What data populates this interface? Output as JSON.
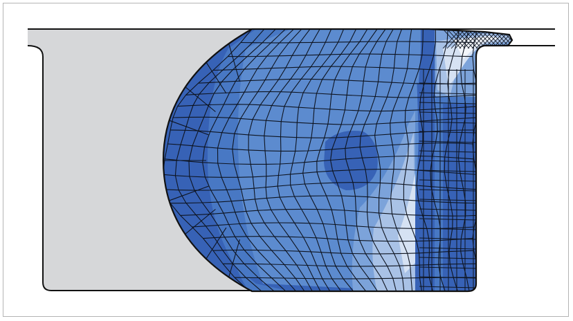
{
  "colors": {
    "background": "#ffffff",
    "frame_border": "#b4b4b4",
    "die_fill": "#d6d7d9",
    "outline": "#111111",
    "mesh_line": "#0e1420",
    "contour_levels": [
      "#3762b6",
      "#4878c4",
      "#5c8bcf",
      "#7ca3da",
      "#a9c2e6",
      "#d6e2f3",
      "#f3f6fb"
    ]
  },
  "diagram": {
    "type": "fem-forging-cross-section",
    "mesh_icon": "quad-mesh",
    "regions": [
      {
        "name": "die",
        "fill_role": "die_fill"
      },
      {
        "name": "workpiece",
        "fill_role": "contour_levels"
      },
      {
        "name": "flash",
        "fill_role": "contour_levels"
      }
    ]
  }
}
